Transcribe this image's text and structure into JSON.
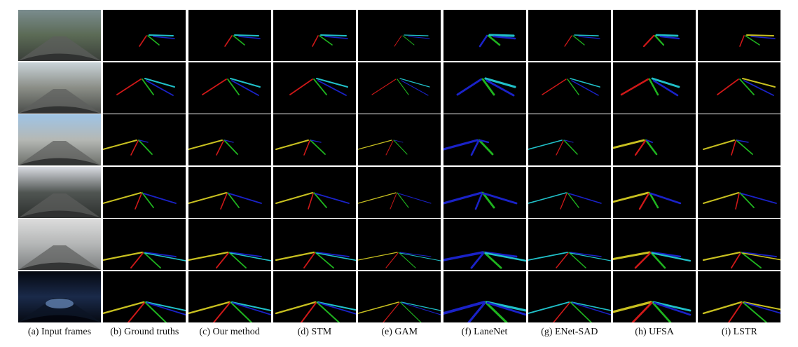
{
  "figure": {
    "columns": [
      {
        "key": "input",
        "label": "(a) Input frames"
      },
      {
        "key": "gt",
        "label": "(b) Ground truths"
      },
      {
        "key": "ours",
        "label": "(c) Our method"
      },
      {
        "key": "stm",
        "label": "(d) STM"
      },
      {
        "key": "gam",
        "label": "(e) GAM"
      },
      {
        "key": "lanenet",
        "label": "(f) LaneNet"
      },
      {
        "key": "enet_sad",
        "label": "(g) ENet-SAD"
      },
      {
        "key": "ufsa",
        "label": "(h) UFSA"
      },
      {
        "key": "lstr",
        "label": "(i) LSTR"
      }
    ],
    "row_count": 6,
    "lane_colors": {
      "red": "#d01818",
      "green": "#1fb51f",
      "blue": "#1a22c8",
      "cyan": "#20c0c8",
      "yellow": "#c8c020",
      "magenta": "#c020c0"
    }
  }
}
